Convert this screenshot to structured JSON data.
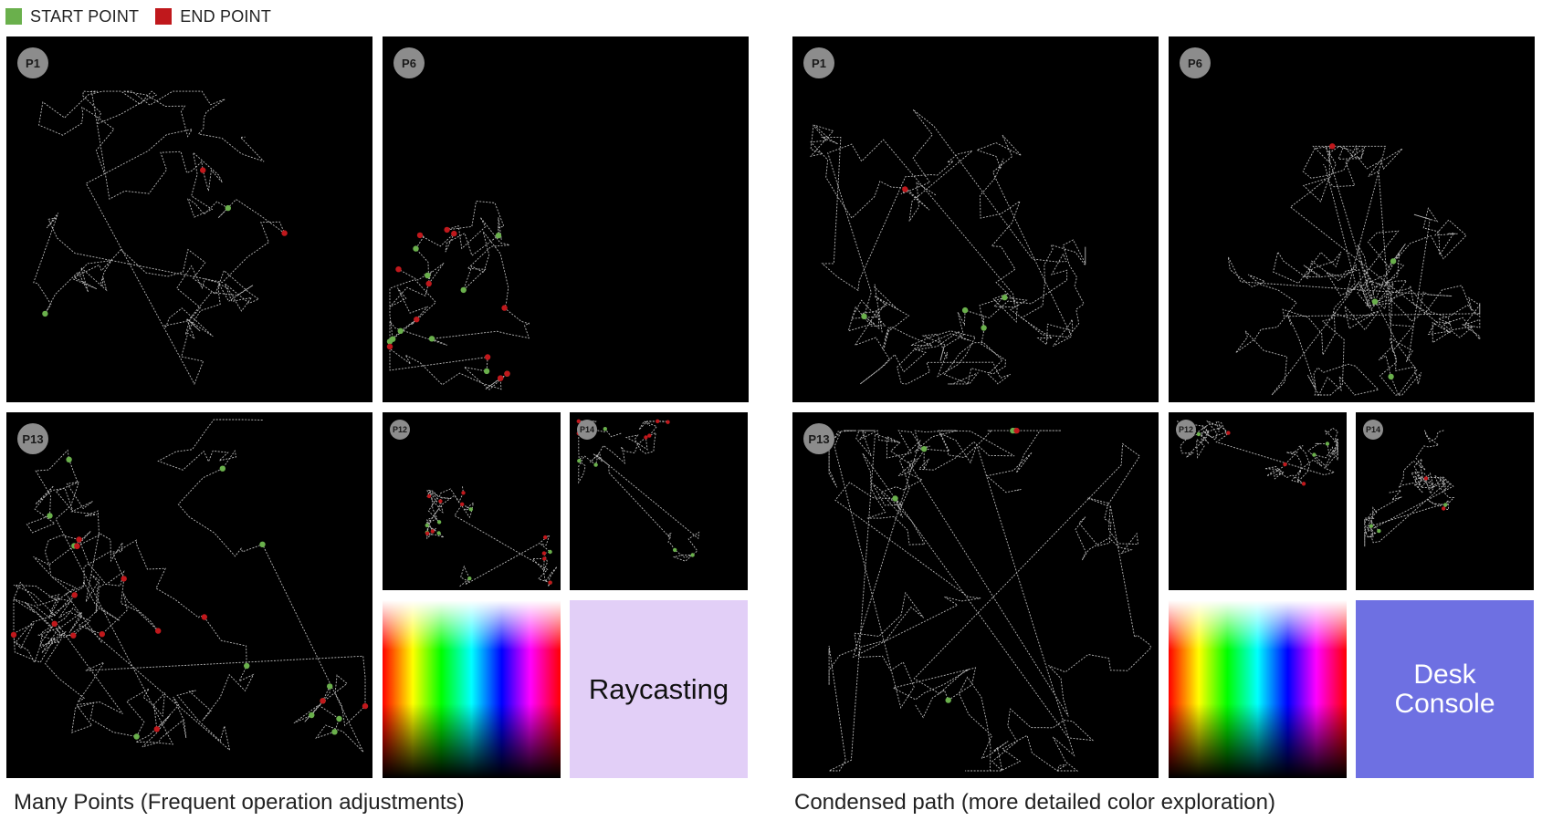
{
  "legend": {
    "start": {
      "label": "START POINT",
      "color": "#6ab04c"
    },
    "end": {
      "label": "END POINT",
      "color": "#c0181c"
    }
  },
  "groups": [
    {
      "caption": "Many Points (Frequent operation adjustments)",
      "mode_label": "Raycasting",
      "mode_color": "#e2cff7",
      "panels": {
        "p1": "P1",
        "p6": "P6",
        "p13": "P13",
        "p12": "P12",
        "p14": "P14"
      }
    },
    {
      "caption": "Condensed path (more detailed color exploration)",
      "mode_label": "Desk\nConsole",
      "mode_color": "#6e70e2",
      "panels": {
        "p1": "P1",
        "p6": "P6",
        "p13": "P13",
        "p12": "P12",
        "p14": "P14"
      }
    }
  ],
  "trace_color": "#d8d8d8",
  "gradient_hues": [
    "red",
    "yellow",
    "green",
    "cyan",
    "blue",
    "magenta"
  ]
}
